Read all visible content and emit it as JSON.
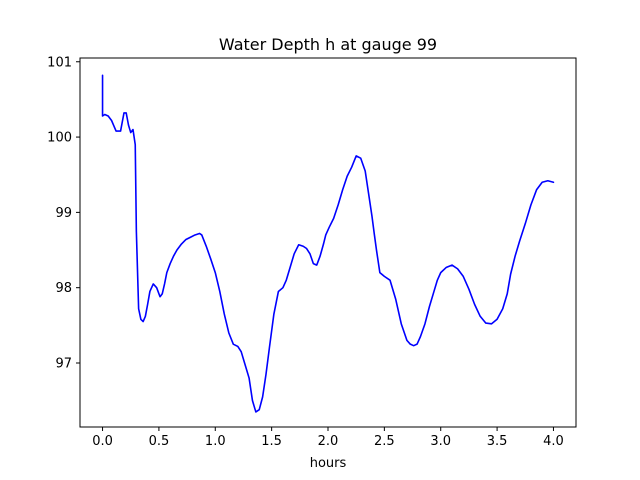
{
  "chart_data": {
    "type": "line",
    "title": "Water Depth h at gauge 99",
    "xlabel": "hours",
    "ylabel": "",
    "xlim": [
      -0.2,
      4.2
    ],
    "ylim": [
      96.15,
      101.05
    ],
    "xticks": [
      0.0,
      0.5,
      1.0,
      1.5,
      2.0,
      2.5,
      3.0,
      3.5,
      4.0
    ],
    "xtick_labels": [
      "0.0",
      "0.5",
      "1.0",
      "1.5",
      "2.0",
      "2.5",
      "3.0",
      "3.5",
      "4.0"
    ],
    "yticks": [
      97,
      98,
      99,
      100,
      101
    ],
    "ytick_labels": [
      "97",
      "98",
      "99",
      "100",
      "101"
    ],
    "grid": false,
    "legend": "none",
    "series": [
      {
        "color": "#0000ff",
        "x": [
          0.0,
          0.0,
          0.0,
          0.02,
          0.05,
          0.08,
          0.12,
          0.16,
          0.19,
          0.21,
          0.23,
          0.25,
          0.27,
          0.29,
          0.3,
          0.32,
          0.34,
          0.36,
          0.38,
          0.4,
          0.42,
          0.45,
          0.48,
          0.51,
          0.53,
          0.55,
          0.57,
          0.6,
          0.63,
          0.66,
          0.7,
          0.74,
          0.78,
          0.82,
          0.86,
          0.88,
          0.92,
          0.96,
          1.0,
          1.04,
          1.08,
          1.12,
          1.16,
          1.2,
          1.23,
          1.26,
          1.3,
          1.33,
          1.36,
          1.39,
          1.42,
          1.45,
          1.48,
          1.52,
          1.56,
          1.6,
          1.63,
          1.66,
          1.7,
          1.74,
          1.78,
          1.81,
          1.84,
          1.87,
          1.9,
          1.93,
          1.96,
          1.98,
          2.01,
          2.05,
          2.09,
          2.13,
          2.17,
          2.21,
          2.25,
          2.29,
          2.33,
          2.36,
          2.39,
          2.41,
          2.43,
          2.46,
          2.5,
          2.55,
          2.6,
          2.65,
          2.7,
          2.73,
          2.76,
          2.79,
          2.82,
          2.86,
          2.9,
          2.94,
          2.97,
          3.0,
          3.05,
          3.1,
          3.15,
          3.2,
          3.25,
          3.3,
          3.35,
          3.4,
          3.45,
          3.5,
          3.55,
          3.59,
          3.62,
          3.66,
          3.7,
          3.75,
          3.8,
          3.85,
          3.9,
          3.95,
          4.0
        ],
        "y": [
          100.82,
          100.82,
          100.28,
          100.3,
          100.28,
          100.22,
          100.08,
          100.08,
          100.32,
          100.32,
          100.16,
          100.06,
          100.1,
          99.9,
          98.75,
          97.72,
          97.58,
          97.55,
          97.62,
          97.78,
          97.95,
          98.05,
          98.0,
          97.88,
          97.92,
          98.05,
          98.2,
          98.32,
          98.42,
          98.5,
          98.58,
          98.64,
          98.67,
          98.7,
          98.72,
          98.7,
          98.55,
          98.38,
          98.2,
          97.95,
          97.65,
          97.4,
          97.25,
          97.22,
          97.15,
          97.0,
          96.8,
          96.5,
          96.35,
          96.38,
          96.55,
          96.85,
          97.2,
          97.65,
          97.95,
          98.0,
          98.1,
          98.25,
          98.45,
          98.57,
          98.55,
          98.52,
          98.45,
          98.32,
          98.3,
          98.42,
          98.58,
          98.7,
          98.8,
          98.92,
          99.1,
          99.3,
          99.48,
          99.6,
          99.75,
          99.72,
          99.55,
          99.25,
          98.95,
          98.72,
          98.5,
          98.2,
          98.15,
          98.1,
          97.85,
          97.52,
          97.3,
          97.25,
          97.23,
          97.25,
          97.35,
          97.52,
          97.75,
          97.95,
          98.1,
          98.2,
          98.27,
          98.3,
          98.25,
          98.15,
          97.98,
          97.78,
          97.62,
          97.53,
          97.52,
          97.58,
          97.72,
          97.92,
          98.18,
          98.42,
          98.62,
          98.85,
          99.1,
          99.3,
          99.4,
          99.42,
          99.4
        ]
      }
    ]
  }
}
